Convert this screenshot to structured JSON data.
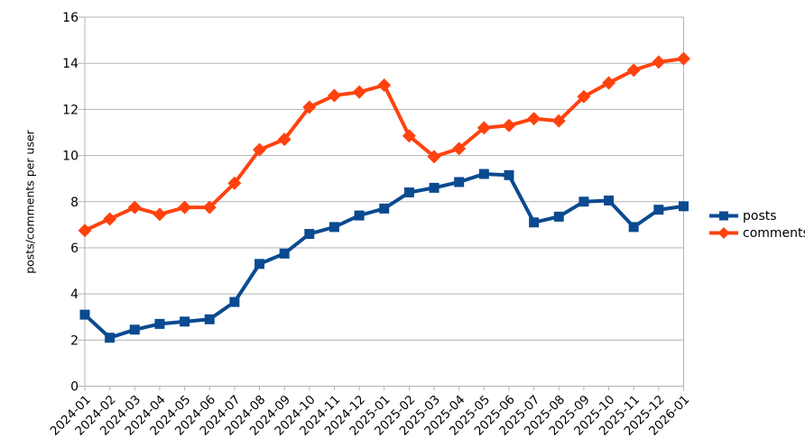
{
  "chart_data": {
    "type": "line",
    "title": "",
    "xlabel": "",
    "ylabel": "posts/comments per user",
    "categories": [
      "2024-01",
      "2024-02",
      "2024-03",
      "2024-04",
      "2024-05",
      "2024-06",
      "2024-07",
      "2024-08",
      "2024-09",
      "2024-10",
      "2024-11",
      "2024-12",
      "2025-01",
      "2025-02",
      "2025-03",
      "2025-04",
      "2025-05",
      "2025-06",
      "2025-07",
      "2025-08",
      "2025-09",
      "2025-10",
      "2025-11",
      "2025-12",
      "2026-01"
    ],
    "series": [
      {
        "name": "posts",
        "marker": "square",
        "color": "#0a4a90",
        "values": [
          3.1,
          2.1,
          2.45,
          2.7,
          2.8,
          2.9,
          3.65,
          5.3,
          5.75,
          6.6,
          6.9,
          7.4,
          7.7,
          8.4,
          8.6,
          8.85,
          9.2,
          9.15,
          7.1,
          7.35,
          8.0,
          8.05,
          6.9,
          7.65,
          7.8
        ]
      },
      {
        "name": "comments",
        "marker": "diamond",
        "color": "#ff420e",
        "values": [
          6.75,
          7.25,
          7.75,
          7.45,
          7.75,
          7.75,
          8.8,
          10.25,
          10.7,
          12.1,
          12.6,
          12.75,
          13.05,
          10.85,
          9.95,
          10.3,
          11.2,
          11.3,
          11.6,
          11.5,
          12.55,
          13.15,
          13.7,
          14.05,
          14.2
        ]
      }
    ],
    "ylim": [
      0,
      16
    ],
    "y_ticks": [
      0,
      2,
      4,
      6,
      8,
      10,
      12,
      14,
      16
    ],
    "grid": "horizontal",
    "legend_position": "right",
    "grid_color": "#b3b3b3",
    "axis_color": "#b3b3b3",
    "text_color": "#000000",
    "background_color": "#ffffff"
  }
}
